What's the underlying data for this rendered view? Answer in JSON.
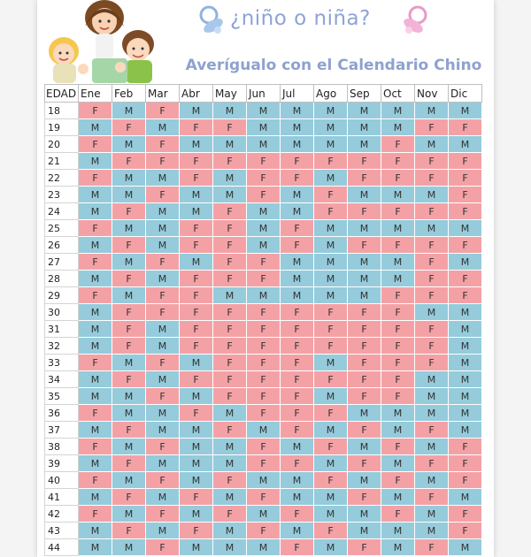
{
  "header": {
    "title": "¿niño o niña?",
    "subtitle": "Averígualo con el Calendario Chino"
  },
  "colors": {
    "female": "#f4a1a6",
    "male": "#95cbdb",
    "title": "#8fa3d3"
  },
  "icons": [
    "children-illustration",
    "blue-pacifier-icon",
    "pink-pacifier-icon"
  ],
  "table": {
    "age_header": "EDAD",
    "months": [
      "Ene",
      "Feb",
      "Mar",
      "Abr",
      "May",
      "Jun",
      "Jul",
      "Ago",
      "Sep",
      "Oct",
      "Nov",
      "Dic"
    ],
    "rows": [
      {
        "age": "18",
        "values": [
          "F",
          "M",
          "F",
          "M",
          "M",
          "M",
          "M",
          "M",
          "M",
          "M",
          "M",
          "M"
        ]
      },
      {
        "age": "19",
        "values": [
          "M",
          "F",
          "M",
          "F",
          "F",
          "M",
          "M",
          "M",
          "M",
          "M",
          "F",
          "F"
        ]
      },
      {
        "age": "20",
        "values": [
          "F",
          "M",
          "F",
          "M",
          "M",
          "M",
          "M",
          "M",
          "M",
          "F",
          "M",
          "M"
        ]
      },
      {
        "age": "21",
        "values": [
          "M",
          "F",
          "F",
          "F",
          "F",
          "F",
          "F",
          "F",
          "F",
          "F",
          "F",
          "F"
        ]
      },
      {
        "age": "22",
        "values": [
          "F",
          "M",
          "M",
          "F",
          "M",
          "F",
          "F",
          "M",
          "F",
          "F",
          "F",
          "F"
        ]
      },
      {
        "age": "23",
        "values": [
          "M",
          "M",
          "F",
          "M",
          "M",
          "F",
          "M",
          "F",
          "M",
          "M",
          "M",
          "F"
        ]
      },
      {
        "age": "24",
        "values": [
          "M",
          "F",
          "M",
          "M",
          "F",
          "M",
          "M",
          "F",
          "F",
          "F",
          "F",
          "F"
        ]
      },
      {
        "age": "25",
        "values": [
          "F",
          "M",
          "M",
          "F",
          "F",
          "M",
          "F",
          "M",
          "M",
          "M",
          "M",
          "M"
        ]
      },
      {
        "age": "26",
        "values": [
          "M",
          "F",
          "M",
          "F",
          "F",
          "M",
          "F",
          "M",
          "F",
          "F",
          "F",
          "F"
        ]
      },
      {
        "age": "27",
        "values": [
          "F",
          "M",
          "F",
          "M",
          "F",
          "F",
          "M",
          "M",
          "M",
          "M",
          "F",
          "M"
        ]
      },
      {
        "age": "28",
        "values": [
          "M",
          "F",
          "M",
          "F",
          "F",
          "F",
          "M",
          "M",
          "M",
          "M",
          "F",
          "F"
        ]
      },
      {
        "age": "29",
        "values": [
          "F",
          "M",
          "F",
          "F",
          "M",
          "M",
          "M",
          "M",
          "M",
          "F",
          "F",
          "F"
        ]
      },
      {
        "age": "30",
        "values": [
          "M",
          "F",
          "F",
          "F",
          "F",
          "F",
          "F",
          "F",
          "F",
          "F",
          "M",
          "M"
        ]
      },
      {
        "age": "31",
        "values": [
          "M",
          "F",
          "M",
          "F",
          "F",
          "F",
          "F",
          "F",
          "F",
          "F",
          "F",
          "M"
        ]
      },
      {
        "age": "32",
        "values": [
          "M",
          "F",
          "M",
          "F",
          "F",
          "F",
          "F",
          "F",
          "F",
          "F",
          "F",
          "M"
        ]
      },
      {
        "age": "33",
        "values": [
          "F",
          "M",
          "F",
          "M",
          "F",
          "F",
          "F",
          "M",
          "F",
          "F",
          "F",
          "M"
        ]
      },
      {
        "age": "34",
        "values": [
          "M",
          "F",
          "M",
          "F",
          "F",
          "F",
          "F",
          "F",
          "F",
          "F",
          "M",
          "M"
        ]
      },
      {
        "age": "35",
        "values": [
          "M",
          "M",
          "F",
          "M",
          "F",
          "F",
          "F",
          "M",
          "F",
          "F",
          "M",
          "M"
        ]
      },
      {
        "age": "36",
        "values": [
          "F",
          "M",
          "M",
          "F",
          "M",
          "F",
          "F",
          "F",
          "M",
          "M",
          "M",
          "M"
        ]
      },
      {
        "age": "37",
        "values": [
          "M",
          "F",
          "M",
          "M",
          "F",
          "M",
          "F",
          "M",
          "F",
          "M",
          "F",
          "M"
        ]
      },
      {
        "age": "38",
        "values": [
          "F",
          "M",
          "F",
          "M",
          "M",
          "F",
          "M",
          "F",
          "M",
          "F",
          "M",
          "F"
        ]
      },
      {
        "age": "39",
        "values": [
          "M",
          "F",
          "M",
          "M",
          "M",
          "F",
          "F",
          "M",
          "F",
          "M",
          "F",
          "F"
        ]
      },
      {
        "age": "40",
        "values": [
          "F",
          "M",
          "F",
          "M",
          "F",
          "M",
          "M",
          "F",
          "M",
          "F",
          "M",
          "F"
        ]
      },
      {
        "age": "41",
        "values": [
          "M",
          "F",
          "M",
          "F",
          "M",
          "F",
          "M",
          "M",
          "F",
          "M",
          "F",
          "M"
        ]
      },
      {
        "age": "42",
        "values": [
          "F",
          "M",
          "F",
          "M",
          "F",
          "M",
          "F",
          "M",
          "M",
          "F",
          "M",
          "F"
        ]
      },
      {
        "age": "43",
        "values": [
          "M",
          "F",
          "M",
          "F",
          "M",
          "F",
          "M",
          "F",
          "M",
          "M",
          "M",
          "F"
        ]
      },
      {
        "age": "44",
        "values": [
          "M",
          "M",
          "F",
          "M",
          "M",
          "M",
          "F",
          "M",
          "F",
          "M",
          "F",
          "M"
        ]
      }
    ]
  }
}
